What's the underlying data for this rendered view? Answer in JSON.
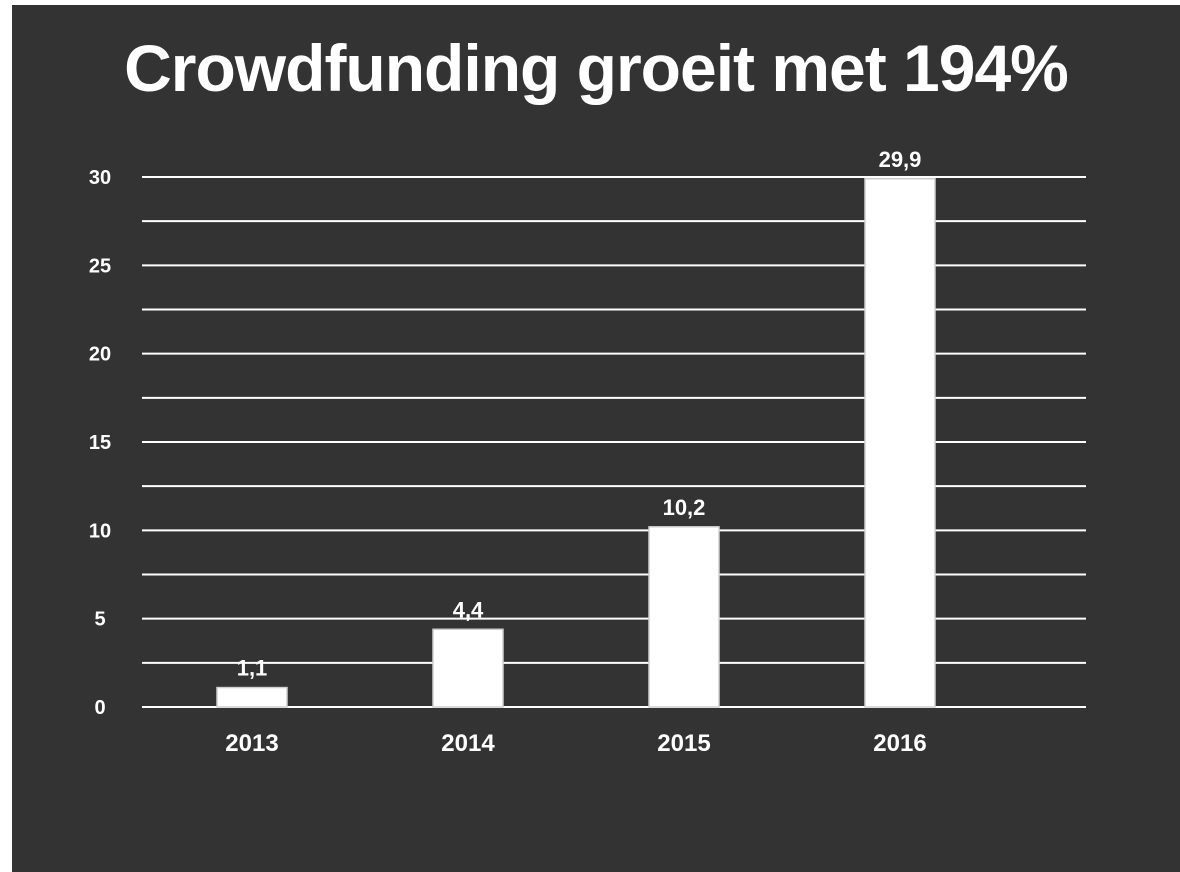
{
  "chart_data": {
    "type": "bar",
    "title": "Crowdfunding groeit met 194%",
    "categories": [
      "2013",
      "2014",
      "2015",
      "2016"
    ],
    "values": [
      1.1,
      4.4,
      10.2,
      29.9
    ],
    "data_labels": [
      "1,1",
      "4,4",
      "10,2",
      "29,9"
    ],
    "y_ticks": [
      0,
      5,
      10,
      15,
      20,
      25,
      30
    ],
    "ylim": [
      0,
      30
    ],
    "xlabel": "",
    "ylabel": "",
    "grid": true,
    "legend": "none",
    "colors": {
      "background": "#333333",
      "bars": "#ffffff",
      "text": "#ffffff",
      "grid": "#ffffff"
    }
  }
}
